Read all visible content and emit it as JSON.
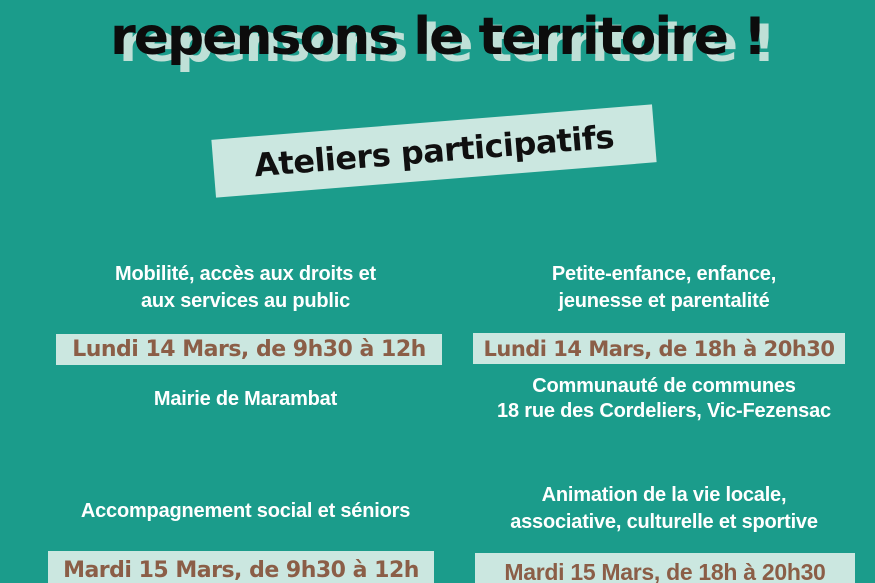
{
  "poster": {
    "title": "repensons le territoire !",
    "subtitle_banner": "Ateliers participatifs",
    "workshops": [
      {
        "topic_lines": [
          "Mobilité, accès aux droits et",
          "aux services au public"
        ],
        "datetime": "Lundi 14 Mars, de 9h30 à 12h",
        "location_lines": [
          "Mairie de Marambat"
        ]
      },
      {
        "topic_lines": [
          "Petite-enfance, enfance,",
          "jeunesse et parentalité"
        ],
        "datetime": "Lundi 14 Mars, de 18h à 20h30",
        "location_lines": [
          "Communauté de communes",
          "18 rue des Cordeliers, Vic-Fezensac"
        ]
      },
      {
        "topic_lines": [
          "Accompagnement social et séniors"
        ],
        "datetime": "Mardi 15 Mars, de 9h30 à 12h",
        "location_lines": []
      },
      {
        "topic_lines": [
          "Animation de la vie locale,",
          "associative, culturelle et sportive"
        ],
        "datetime": "Mardi 15 Mars, de 18h à 20h30",
        "location_lines": []
      }
    ],
    "colors": {
      "background_teal": "#1b9c8b",
      "banner_mint": "#cbe7e0",
      "title_shadow_mint": "#bfe0d7",
      "date_text_brown": "#8b5e47",
      "topic_text": "#ffffff",
      "title_text": "#0c0c0c"
    }
  }
}
